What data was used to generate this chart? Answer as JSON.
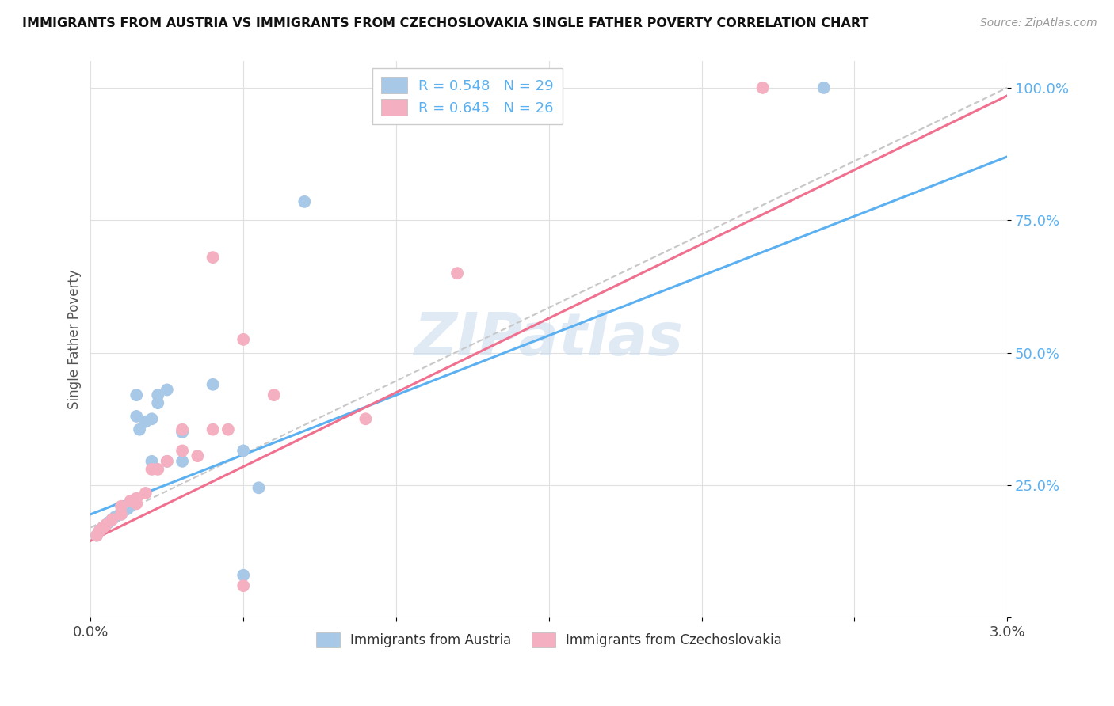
{
  "title": "IMMIGRANTS FROM AUSTRIA VS IMMIGRANTS FROM CZECHOSLOVAKIA SINGLE FATHER POVERTY CORRELATION CHART",
  "source": "Source: ZipAtlas.com",
  "ylabel": "Single Father Poverty",
  "y_ticks": [
    0.0,
    0.25,
    0.5,
    0.75,
    1.0
  ],
  "y_tick_labels": [
    "",
    "25.0%",
    "50.0%",
    "75.0%",
    "100.0%"
  ],
  "x_ticks": [
    0.0,
    0.005,
    0.01,
    0.015,
    0.02,
    0.025,
    0.03
  ],
  "watermark": "ZIPatlas",
  "legend_austria": "R = 0.548   N = 29",
  "legend_czech": "R = 0.645   N = 26",
  "austria_color": "#a8c8e8",
  "czech_color": "#f4b0c0",
  "austria_line_color": "#5ab0f0",
  "czech_line_color": "#f07090",
  "diagonal_color": "#c8c8c8",
  "austria_scatter": [
    [
      0.0002,
      0.155
    ],
    [
      0.0003,
      0.165
    ],
    [
      0.0004,
      0.17
    ],
    [
      0.0005,
      0.175
    ],
    [
      0.0006,
      0.18
    ],
    [
      0.0007,
      0.185
    ],
    [
      0.0008,
      0.19
    ],
    [
      0.001,
      0.195
    ],
    [
      0.001,
      0.2
    ],
    [
      0.0012,
      0.205
    ],
    [
      0.0013,
      0.21
    ],
    [
      0.0015,
      0.38
    ],
    [
      0.0015,
      0.42
    ],
    [
      0.0016,
      0.355
    ],
    [
      0.0018,
      0.37
    ],
    [
      0.002,
      0.375
    ],
    [
      0.002,
      0.295
    ],
    [
      0.0022,
      0.405
    ],
    [
      0.0022,
      0.42
    ],
    [
      0.0025,
      0.43
    ],
    [
      0.0025,
      0.295
    ],
    [
      0.003,
      0.295
    ],
    [
      0.003,
      0.35
    ],
    [
      0.004,
      0.44
    ],
    [
      0.005,
      0.315
    ],
    [
      0.005,
      0.08
    ],
    [
      0.0055,
      0.245
    ],
    [
      0.007,
      0.785
    ],
    [
      0.024,
      1.0
    ]
  ],
  "czech_scatter": [
    [
      0.0002,
      0.155
    ],
    [
      0.0003,
      0.165
    ],
    [
      0.0004,
      0.17
    ],
    [
      0.0005,
      0.175
    ],
    [
      0.0007,
      0.185
    ],
    [
      0.001,
      0.195
    ],
    [
      0.001,
      0.21
    ],
    [
      0.0013,
      0.22
    ],
    [
      0.0015,
      0.215
    ],
    [
      0.0015,
      0.225
    ],
    [
      0.0018,
      0.235
    ],
    [
      0.002,
      0.28
    ],
    [
      0.0022,
      0.28
    ],
    [
      0.0025,
      0.295
    ],
    [
      0.003,
      0.315
    ],
    [
      0.003,
      0.355
    ],
    [
      0.0035,
      0.305
    ],
    [
      0.004,
      0.68
    ],
    [
      0.004,
      0.355
    ],
    [
      0.0045,
      0.355
    ],
    [
      0.005,
      0.525
    ],
    [
      0.005,
      0.06
    ],
    [
      0.006,
      0.42
    ],
    [
      0.009,
      0.375
    ],
    [
      0.012,
      0.65
    ],
    [
      0.022,
      1.0
    ]
  ],
  "austria_line": [
    [
      0.0,
      0.195
    ],
    [
      0.03,
      0.87
    ]
  ],
  "czech_line": [
    [
      0.0,
      0.145
    ],
    [
      0.03,
      0.985
    ]
  ],
  "diagonal_line": [
    [
      0.0,
      0.17
    ],
    [
      0.03,
      1.0
    ]
  ],
  "xlim": [
    0.0,
    0.03
  ],
  "ylim": [
    0.12,
    1.05
  ]
}
